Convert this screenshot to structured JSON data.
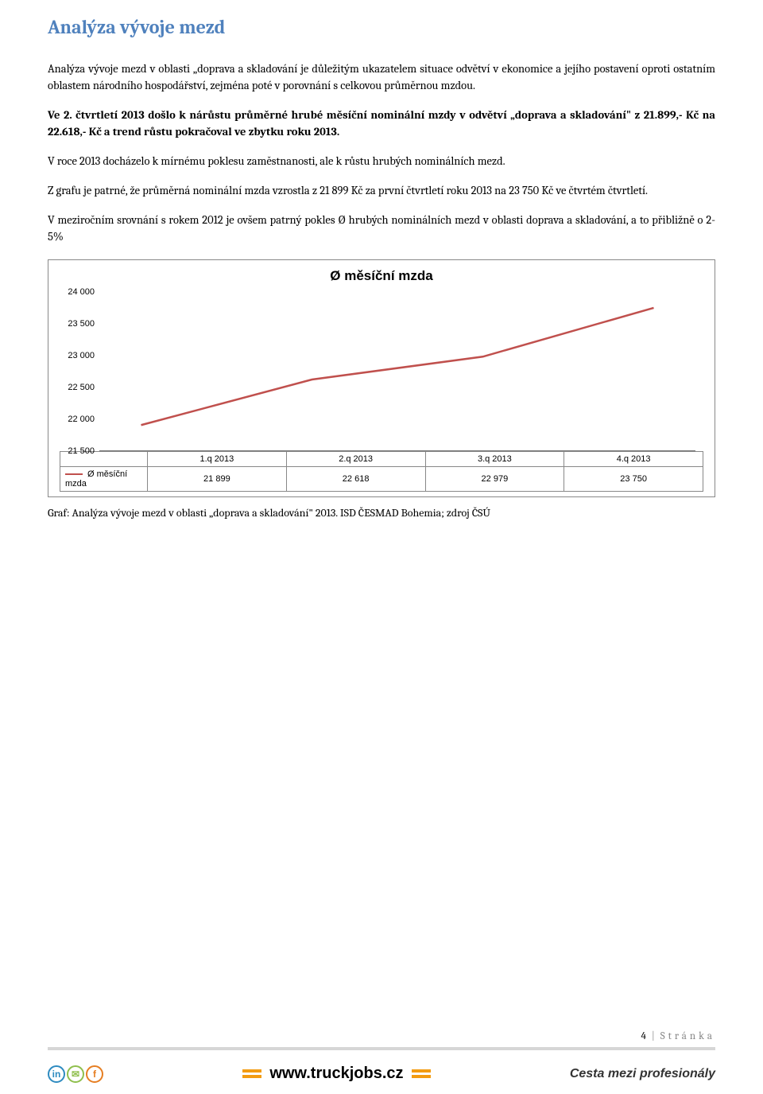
{
  "heading": "Analýza vývoje mezd",
  "paragraphs": {
    "p1": "Analýza vývoje mezd v oblasti „doprava a skladování je důležitým ukazatelem situace odvětví v ekonomice a jejího postavení oproti ostatním oblastem národního hospodářství, zejména poté v porovnání s celkovou průměrnou mzdou.",
    "p2": "Ve 2. čtvrtletí 2013 došlo k nárůstu průměrné hrubé měsíční nominální mzdy v odvětví „doprava a skladování\" z 21.899,- Kč na 22.618,- Kč a trend růstu pokračoval ve zbytku roku 2013.",
    "p3": "V roce 2013 docházelo k mírnému poklesu zaměstnanosti, ale k růstu hrubých nominálních mezd.",
    "p4": "Z grafu je patrné, že průměrná nominální mzda vzrostla z 21 899 Kč za první čtvrtletí roku 2013 na 23 750 Kč ve čtvrtém čtvrtletí.",
    "p5": "V meziročním srovnání s rokem 2012 je ovšem patrný pokles Ø hrubých nominálních mezd v oblasti doprava a skladování, a to přibližně o 2-5%"
  },
  "chart": {
    "title": "Ø měsíční mzda",
    "series_label": "Ø měsíční mzda",
    "type": "line",
    "categories": [
      "1.q 2013",
      "2.q 2013",
      "3.q 2013",
      "4.q 2013"
    ],
    "values": [
      21899,
      22618,
      22979,
      23750
    ],
    "line_color": "#c0504d",
    "line_width": 2.5,
    "ylim": [
      21500,
      24000
    ],
    "yticks": [
      21500,
      22000,
      22500,
      23000,
      23500,
      24000
    ],
    "ytick_labels": [
      "21 500",
      "22 000",
      "22 500",
      "23 000",
      "23 500",
      "24 000"
    ],
    "value_labels": [
      "21 899",
      "22 618",
      "22 979",
      "23 750"
    ],
    "background_color": "#ffffff",
    "border_color": "#888888",
    "axis_fontsize": 11,
    "title_fontsize": 17
  },
  "caption": "Graf: Analýza vývoje mezd v oblasti „doprava a skladování\" 2013. ISD ČESMAD Bohemia;  zdroj ČSÚ",
  "footer": {
    "page_number": "4",
    "page_label": "Stránka",
    "center_url": "www.truckjobs.cz",
    "right_text": "Cesta mezi profesionály",
    "icon_colors": [
      "#2e8bc0",
      "#8fbf4d",
      "#e67e22"
    ]
  }
}
